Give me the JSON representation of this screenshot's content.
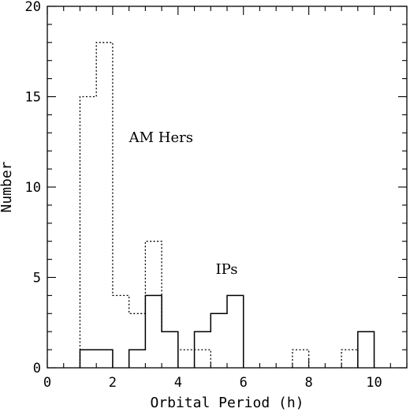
{
  "chart_data": {
    "type": "histogram",
    "xlabel": "Orbital Period (h)",
    "ylabel": "Number",
    "xlim": [
      0,
      11
    ],
    "ylim": [
      0,
      20
    ],
    "bin_width": 0.5,
    "x_ticks": [
      "0",
      "2",
      "4",
      "6",
      "8",
      "10"
    ],
    "y_ticks": [
      "0",
      "5",
      "10",
      "15",
      "20"
    ],
    "grid": false,
    "series": [
      {
        "name": "AM Hers",
        "style": "dotted",
        "bins": [
          {
            "x0": 1.0,
            "x1": 1.5,
            "count": 15
          },
          {
            "x0": 1.5,
            "x1": 2.0,
            "count": 18
          },
          {
            "x0": 2.0,
            "x1": 2.5,
            "count": 4
          },
          {
            "x0": 2.5,
            "x1": 3.0,
            "count": 3
          },
          {
            "x0": 3.0,
            "x1": 3.5,
            "count": 7
          },
          {
            "x0": 3.5,
            "x1": 4.0,
            "count": 2
          },
          {
            "x0": 4.0,
            "x1": 4.5,
            "count": 1
          },
          {
            "x0": 4.5,
            "x1": 5.0,
            "count": 1
          },
          {
            "x0": 7.5,
            "x1": 8.0,
            "count": 1
          },
          {
            "x0": 9.0,
            "x1": 9.5,
            "count": 1
          }
        ]
      },
      {
        "name": "IPs",
        "style": "solid",
        "bins": [
          {
            "x0": 1.0,
            "x1": 1.5,
            "count": 1
          },
          {
            "x0": 1.5,
            "x1": 2.0,
            "count": 1
          },
          {
            "x0": 2.5,
            "x1": 3.0,
            "count": 1
          },
          {
            "x0": 3.0,
            "x1": 3.5,
            "count": 4
          },
          {
            "x0": 3.5,
            "x1": 4.0,
            "count": 2
          },
          {
            "x0": 4.5,
            "x1": 5.0,
            "count": 2
          },
          {
            "x0": 5.0,
            "x1": 5.5,
            "count": 3
          },
          {
            "x0": 5.5,
            "x1": 6.0,
            "count": 4
          },
          {
            "x0": 9.5,
            "x1": 10.0,
            "count": 2
          }
        ]
      }
    ],
    "annotations": [
      {
        "text": "AM Hers",
        "x": 2.5,
        "y": 12.5
      },
      {
        "text": "IPs",
        "x": 5.15,
        "y": 5.2
      }
    ]
  }
}
